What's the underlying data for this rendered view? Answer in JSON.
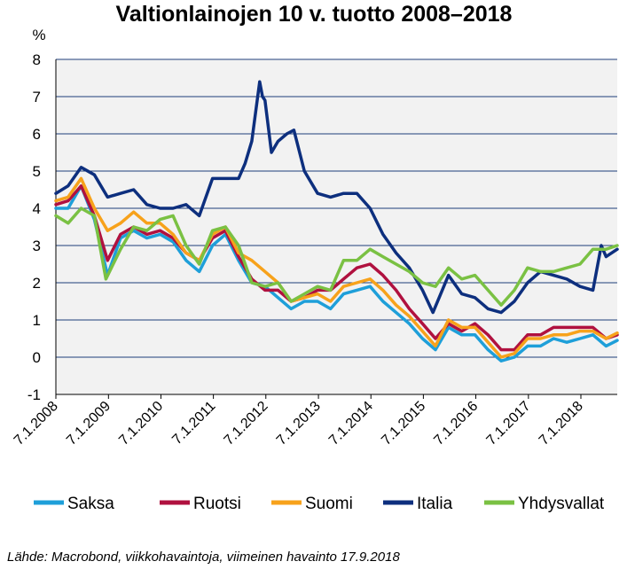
{
  "chart_data": {
    "type": "line",
    "title": "Valtionlainojen 10 v. tuotto 2008–2018",
    "ylabel": "%",
    "ylim": [
      -1,
      8
    ],
    "yticks": [
      -1,
      0,
      1,
      2,
      3,
      4,
      5,
      6,
      7,
      8
    ],
    "xlim": [
      "2008-01-07",
      "2018-09-17"
    ],
    "xtick_labels": [
      "7.1.2008",
      "7.1.2009",
      "7.1.2010",
      "7.1.2011",
      "7.1.2012",
      "7.1.2013",
      "7.1.2014",
      "7.1.2015",
      "7.1.2016",
      "7.1.2017",
      "7.1.2018"
    ],
    "grid": true,
    "legend_position": "bottom",
    "colors": {
      "plot_background": "#f2f2f2",
      "grid": "#1f3d7a"
    },
    "series": [
      {
        "name": "Saksa",
        "color": "#1e9fd9",
        "x": [
          "2008-01-07",
          "2008-04-01",
          "2008-07-01",
          "2008-10-01",
          "2009-01-01",
          "2009-04-01",
          "2009-07-01",
          "2009-10-01",
          "2010-01-01",
          "2010-04-01",
          "2010-07-01",
          "2010-10-01",
          "2011-01-01",
          "2011-04-01",
          "2011-07-01",
          "2011-10-01",
          "2012-01-01",
          "2012-04-01",
          "2012-07-01",
          "2012-10-01",
          "2013-01-01",
          "2013-04-01",
          "2013-07-01",
          "2013-10-01",
          "2014-01-01",
          "2014-04-01",
          "2014-07-01",
          "2014-10-01",
          "2015-01-01",
          "2015-04-01",
          "2015-07-01",
          "2015-10-01",
          "2016-01-01",
          "2016-04-01",
          "2016-07-01",
          "2016-10-01",
          "2017-01-01",
          "2017-04-01",
          "2017-07-01",
          "2017-10-01",
          "2018-01-01",
          "2018-04-01",
          "2018-07-01",
          "2018-09-17"
        ],
        "y": [
          4.0,
          4.0,
          4.6,
          3.7,
          2.2,
          3.2,
          3.4,
          3.2,
          3.3,
          3.1,
          2.6,
          2.3,
          3.0,
          3.3,
          2.6,
          2.0,
          1.9,
          1.6,
          1.3,
          1.5,
          1.5,
          1.3,
          1.7,
          1.8,
          1.9,
          1.5,
          1.2,
          0.9,
          0.5,
          0.2,
          0.8,
          0.6,
          0.6,
          0.2,
          -0.1,
          0.0,
          0.3,
          0.3,
          0.5,
          0.4,
          0.5,
          0.6,
          0.3,
          0.45
        ]
      },
      {
        "name": "Ruotsi",
        "color": "#b0113f",
        "x": [
          "2008-01-07",
          "2008-04-01",
          "2008-07-01",
          "2008-10-01",
          "2009-01-01",
          "2009-04-01",
          "2009-07-01",
          "2009-10-01",
          "2010-01-01",
          "2010-04-01",
          "2010-07-01",
          "2010-10-01",
          "2011-01-01",
          "2011-04-01",
          "2011-07-01",
          "2011-10-01",
          "2012-01-01",
          "2012-04-01",
          "2012-07-01",
          "2012-10-01",
          "2013-01-01",
          "2013-04-01",
          "2013-07-01",
          "2013-10-01",
          "2014-01-01",
          "2014-04-01",
          "2014-07-01",
          "2014-10-01",
          "2015-01-01",
          "2015-04-01",
          "2015-07-01",
          "2015-10-01",
          "2016-01-01",
          "2016-04-01",
          "2016-07-01",
          "2016-10-01",
          "2017-01-01",
          "2017-04-01",
          "2017-07-01",
          "2017-10-01",
          "2018-01-01",
          "2018-04-01",
          "2018-07-01",
          "2018-09-17"
        ],
        "y": [
          4.1,
          4.2,
          4.6,
          3.8,
          2.6,
          3.3,
          3.5,
          3.3,
          3.4,
          3.2,
          2.8,
          2.6,
          3.2,
          3.4,
          2.7,
          2.1,
          1.8,
          1.8,
          1.5,
          1.6,
          1.8,
          1.8,
          2.1,
          2.4,
          2.5,
          2.2,
          1.8,
          1.3,
          0.9,
          0.5,
          0.9,
          0.7,
          0.9,
          0.6,
          0.2,
          0.2,
          0.6,
          0.6,
          0.8,
          0.8,
          0.8,
          0.8,
          0.5,
          0.6
        ]
      },
      {
        "name": "Suomi",
        "color": "#f7a21b",
        "x": [
          "2008-01-07",
          "2008-04-01",
          "2008-07-01",
          "2008-10-01",
          "2009-01-01",
          "2009-04-01",
          "2009-07-01",
          "2009-10-01",
          "2010-01-01",
          "2010-04-01",
          "2010-07-01",
          "2010-10-01",
          "2011-01-01",
          "2011-04-01",
          "2011-07-01",
          "2011-10-01",
          "2012-01-01",
          "2012-04-01",
          "2012-07-01",
          "2012-10-01",
          "2013-01-01",
          "2013-04-01",
          "2013-07-01",
          "2013-10-01",
          "2014-01-01",
          "2014-04-01",
          "2014-07-01",
          "2014-10-01",
          "2015-01-01",
          "2015-04-01",
          "2015-07-01",
          "2015-10-01",
          "2016-01-01",
          "2016-04-01",
          "2016-07-01",
          "2016-10-01",
          "2017-01-01",
          "2017-04-01",
          "2017-07-01",
          "2017-10-01",
          "2018-01-01",
          "2018-04-01",
          "2018-07-01",
          "2018-09-17"
        ],
        "y": [
          4.2,
          4.3,
          4.8,
          4.0,
          3.4,
          3.6,
          3.9,
          3.6,
          3.6,
          3.3,
          2.8,
          2.6,
          3.3,
          3.5,
          2.8,
          2.6,
          2.3,
          2.0,
          1.5,
          1.6,
          1.7,
          1.5,
          1.9,
          2.0,
          2.1,
          1.8,
          1.4,
          1.1,
          0.7,
          0.3,
          1.0,
          0.8,
          0.8,
          0.4,
          0.0,
          0.1,
          0.5,
          0.5,
          0.6,
          0.6,
          0.7,
          0.7,
          0.5,
          0.65
        ]
      },
      {
        "name": "Italia",
        "color": "#0d2f7e",
        "x": [
          "2008-01-07",
          "2008-04-01",
          "2008-07-01",
          "2008-10-01",
          "2009-01-01",
          "2009-04-01",
          "2009-07-01",
          "2009-10-01",
          "2010-01-01",
          "2010-04-01",
          "2010-07-01",
          "2010-10-01",
          "2011-01-01",
          "2011-04-01",
          "2011-07-01",
          "2011-08-15",
          "2011-10-01",
          "2011-11-25",
          "2011-12-15",
          "2012-01-01",
          "2012-02-15",
          "2012-04-01",
          "2012-06-01",
          "2012-07-20",
          "2012-10-01",
          "2013-01-01",
          "2013-04-01",
          "2013-07-01",
          "2013-10-01",
          "2014-01-01",
          "2014-04-01",
          "2014-07-01",
          "2014-10-01",
          "2015-01-01",
          "2015-03-15",
          "2015-07-01",
          "2015-10-01",
          "2016-01-01",
          "2016-04-01",
          "2016-07-01",
          "2016-10-01",
          "2017-01-01",
          "2017-04-01",
          "2017-07-01",
          "2017-10-01",
          "2018-01-01",
          "2018-04-01",
          "2018-05-29",
          "2018-07-01",
          "2018-09-17"
        ],
        "y": [
          4.4,
          4.6,
          5.1,
          4.9,
          4.3,
          4.4,
          4.5,
          4.1,
          4.0,
          4.0,
          4.1,
          3.8,
          4.8,
          4.8,
          4.8,
          5.2,
          5.8,
          7.4,
          7.0,
          6.9,
          5.5,
          5.8,
          6.0,
          6.1,
          5.0,
          4.4,
          4.3,
          4.4,
          4.4,
          4.0,
          3.3,
          2.8,
          2.4,
          1.8,
          1.2,
          2.2,
          1.7,
          1.6,
          1.3,
          1.2,
          1.5,
          2.0,
          2.3,
          2.2,
          2.1,
          1.9,
          1.8,
          3.0,
          2.7,
          2.9
        ]
      },
      {
        "name": "Yhdysvallat",
        "color": "#7ac143",
        "x": [
          "2008-01-07",
          "2008-04-01",
          "2008-07-01",
          "2008-10-01",
          "2008-12-20",
          "2009-04-01",
          "2009-07-01",
          "2009-10-01",
          "2010-01-01",
          "2010-04-01",
          "2010-07-01",
          "2010-10-01",
          "2011-01-01",
          "2011-04-01",
          "2011-07-01",
          "2011-10-01",
          "2012-01-01",
          "2012-04-01",
          "2012-07-01",
          "2012-10-01",
          "2013-01-01",
          "2013-04-01",
          "2013-07-01",
          "2013-10-01",
          "2014-01-01",
          "2014-04-01",
          "2014-07-01",
          "2014-10-01",
          "2015-01-01",
          "2015-04-01",
          "2015-07-01",
          "2015-10-01",
          "2016-01-01",
          "2016-04-01",
          "2016-07-01",
          "2016-10-01",
          "2017-01-01",
          "2017-04-01",
          "2017-07-01",
          "2017-10-01",
          "2018-01-01",
          "2018-04-01",
          "2018-07-01",
          "2018-09-17"
        ],
        "y": [
          3.8,
          3.6,
          4.0,
          3.8,
          2.1,
          2.9,
          3.5,
          3.4,
          3.7,
          3.8,
          3.0,
          2.5,
          3.4,
          3.5,
          3.0,
          2.0,
          1.9,
          2.0,
          1.5,
          1.7,
          1.9,
          1.8,
          2.6,
          2.6,
          2.9,
          2.7,
          2.5,
          2.3,
          2.0,
          1.9,
          2.4,
          2.1,
          2.2,
          1.8,
          1.4,
          1.8,
          2.4,
          2.3,
          2.3,
          2.4,
          2.5,
          2.9,
          2.9,
          3.0
        ]
      }
    ]
  },
  "source_note": "Lähde: Macrobond, viikkohavaintoja, viimeinen havainto 17.9.2018"
}
